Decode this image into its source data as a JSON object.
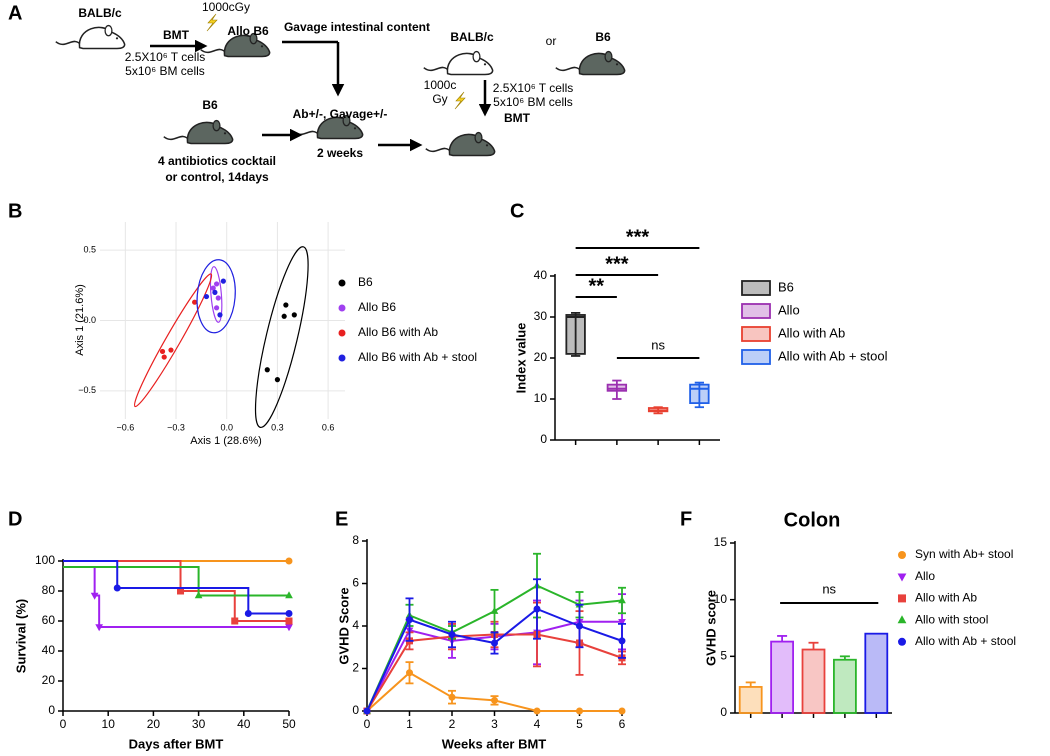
{
  "panel_labels": [
    "A",
    "B",
    "C",
    "D",
    "E",
    "F"
  ],
  "diagram": {
    "donor_1": "BALB/c",
    "bmt_1": "BMT",
    "dose_1": "1000cGy",
    "recipient_1": "Allo B6",
    "cells_1": [
      "2.5X10⁶ T cells",
      "5x10⁶ BM cells"
    ],
    "gavage": "Gavage intestinal content",
    "recipient_pre": "B6",
    "treatment": [
      "4 antibiotics cocktail",
      "or control, 14days"
    ],
    "conditioning": "Ab+/-, Gavage+/-",
    "duration": "2 weeks",
    "donor_2": "BALB/c",
    "or": "or",
    "donor_3": "B6",
    "dose_2": [
      "1000c",
      "Gy"
    ],
    "cells_2": [
      "2.5X10⁶ T cells",
      "5x10⁶ BM cells"
    ],
    "bmt_2": "BMT"
  },
  "chart_data": [
    {
      "type": "scatter",
      "xlabel": "Axis 1 (28.6%)",
      "ylabel": "Axis 1 (21.6%)",
      "xlim": [
        -0.75,
        0.7
      ],
      "ylim": [
        -0.7,
        0.7
      ],
      "xticks": [
        {
          "value": -0.6,
          "label": "−0.6"
        },
        {
          "value": -0.3,
          "label": "−0.3"
        },
        {
          "value": 0,
          "label": "0.0"
        },
        0.3,
        0.6
      ],
      "yticks": [
        {
          "value": -0.5,
          "label": "−0.5"
        },
        {
          "value": 0,
          "label": "0.0"
        },
        0.5
      ],
      "grid": true,
      "ellipses": true,
      "legend": "right",
      "series": [
        {
          "name": "B6",
          "color": "#000000",
          "x": [
            0.35,
            0.4,
            0.34,
            0.24,
            0.3
          ],
          "values": [
            0.11,
            0.04,
            0.03,
            -0.35,
            -0.42
          ]
        },
        {
          "name": "Allo B6",
          "color": "#a040f0",
          "x": [
            -0.08,
            -0.06,
            -0.05,
            -0.06
          ],
          "values": [
            0.23,
            0.26,
            0.16,
            0.09
          ]
        },
        {
          "name": "Allo B6 with Ab",
          "color": "#e82020",
          "x": [
            -0.19,
            -0.33,
            -0.37,
            -0.38
          ],
          "values": [
            0.13,
            -0.21,
            -0.26,
            -0.22
          ]
        },
        {
          "name": "Allo B6 with Ab + stool",
          "color": "#2020e0",
          "x": [
            -0.12,
            -0.02,
            -0.07,
            -0.04
          ],
          "values": [
            0.17,
            0.28,
            0.2,
            0.04
          ]
        }
      ]
    },
    {
      "type": "box",
      "ylabel": "Index value",
      "ylim": [
        0,
        40
      ],
      "yticks": [
        0,
        10,
        20,
        30,
        40
      ],
      "categories": [
        null,
        null,
        null,
        null
      ],
      "legend": "right",
      "boxes": [
        {
          "name": "B6",
          "color": "#222222",
          "min": 20.5,
          "q1": 21,
          "median": 30,
          "q3": 30.5,
          "max": 31
        },
        {
          "name": "Allo",
          "color": "#9b30b0",
          "min": 10,
          "q1": 12,
          "median": 12.5,
          "q3": 13.5,
          "max": 14.5
        },
        {
          "name": "Allo with Ab",
          "color": "#e84030",
          "min": 6.5,
          "q1": 7,
          "median": 7.2,
          "q3": 7.8,
          "max": 8
        },
        {
          "name": "Allo with Ab + stool",
          "color": "#2060e8",
          "min": 8,
          "q1": 9,
          "median": 12.5,
          "q3": 13.5,
          "max": 14
        }
      ],
      "annotations": [
        "**",
        "***",
        "***",
        "ns"
      ]
    },
    {
      "type": "line",
      "step": true,
      "xlabel": "Days after BMT",
      "ylabel": "Survival (%)",
      "xlim": [
        0,
        50
      ],
      "ylim": [
        0,
        100
      ],
      "xticks": [
        0,
        10,
        20,
        30,
        40,
        50
      ],
      "yticks": [
        0,
        20,
        40,
        60,
        80,
        100
      ],
      "series": [
        {
          "color": "#f7941d",
          "marker": "circle",
          "x": [
            0,
            50
          ],
          "values": [
            100,
            100
          ]
        },
        {
          "color": "#a020f0",
          "marker": "triangle-down",
          "x": [
            0,
            7,
            8,
            50
          ],
          "values": [
            96,
            77,
            56,
            56
          ]
        },
        {
          "color": "#e8413c",
          "marker": "square",
          "x": [
            0,
            26,
            38,
            50
          ],
          "values": [
            100,
            80,
            60,
            60
          ]
        },
        {
          "color": "#2ab52a",
          "marker": "triangle",
          "x": [
            0,
            30,
            50
          ],
          "values": [
            96,
            77,
            77
          ]
        },
        {
          "color": "#1a1ae6",
          "marker": "circle",
          "x": [
            0,
            12,
            41,
            50
          ],
          "values": [
            100,
            82,
            65,
            65
          ]
        }
      ]
    },
    {
      "type": "line",
      "xlabel": "Weeks after BMT",
      "ylabel": "GVHD Score",
      "xlim": [
        0,
        6
      ],
      "ylim": [
        0,
        8
      ],
      "xticks": [
        0,
        1,
        2,
        3,
        4,
        5,
        6
      ],
      "yticks": [
        0,
        2,
        4,
        6,
        8
      ],
      "x": [
        0,
        1,
        2,
        3,
        4,
        5,
        6
      ],
      "series": [
        {
          "color": "#f7941d",
          "marker": "circle",
          "values": [
            0,
            1.8,
            0.65,
            0.5,
            0,
            0,
            0
          ],
          "errors": [
            0,
            0.5,
            0.3,
            0.2,
            0,
            0,
            0
          ]
        },
        {
          "color": "#a020f0",
          "marker": "triangle-down",
          "values": [
            0,
            3.8,
            3.3,
            3.5,
            3.7,
            4.2,
            4.2
          ],
          "errors": [
            0,
            0.5,
            0.8,
            0.6,
            1.5,
            1.0,
            1.3
          ]
        },
        {
          "color": "#e8413c",
          "marker": "square",
          "values": [
            0,
            3.3,
            3.5,
            3.6,
            3.6,
            3.2,
            2.5
          ],
          "errors": [
            0,
            0.4,
            0.6,
            0.6,
            1.5,
            1.5,
            0.3
          ]
        },
        {
          "color": "#2ab52a",
          "marker": "triangle",
          "values": [
            0,
            4.5,
            3.7,
            4.7,
            5.9,
            5.0,
            5.2
          ],
          "errors": [
            0,
            0.5,
            0.3,
            1.0,
            1.5,
            0.6,
            0.6
          ]
        },
        {
          "color": "#1a1ae6",
          "marker": "circle",
          "values": [
            0,
            4.3,
            3.6,
            3.2,
            4.8,
            4.0,
            3.3
          ],
          "errors": [
            0,
            1.0,
            0.6,
            0.5,
            1.4,
            1.0,
            0.8
          ]
        }
      ]
    },
    {
      "type": "bar",
      "title": "Colon",
      "ylabel": "GVHD score",
      "ylim": [
        0,
        15
      ],
      "yticks": [
        0,
        5,
        10,
        15
      ],
      "categories": [
        null,
        null,
        null,
        null,
        null
      ],
      "values": [
        2.3,
        6.3,
        5.6,
        4.7,
        7.0
      ],
      "errors": [
        0.4,
        0.5,
        0.6,
        0.3,
        0
      ],
      "colors": [
        "#f7941d",
        "#a020f0",
        "#e8413c",
        "#2ab52a",
        "#1a1ae6"
      ],
      "markers": [
        "circle",
        "triangle-down",
        "square",
        "triangle",
        "circle"
      ],
      "legend": [
        "Syn with Ab+ stool",
        "Allo",
        "Allo with Ab",
        "Allo with stool",
        "Allo with Ab + stool"
      ],
      "annotations": [
        "ns"
      ]
    }
  ]
}
